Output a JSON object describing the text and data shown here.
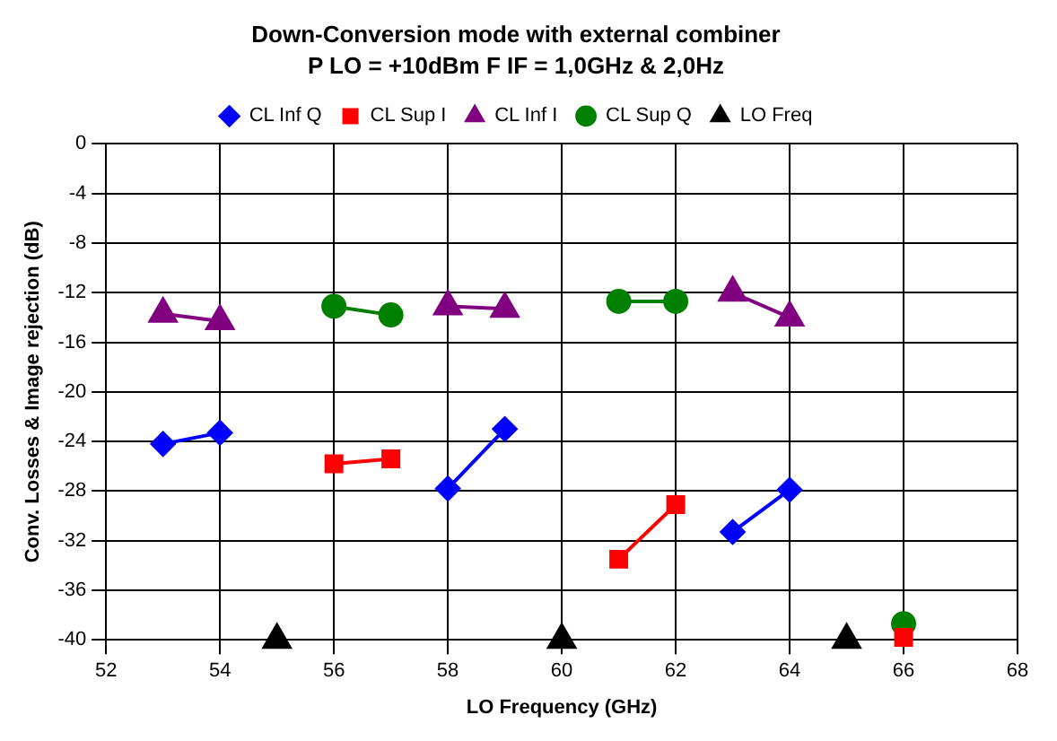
{
  "chart_data": {
    "type": "line",
    "title": "Down-Conversion mode with external combiner",
    "subtitle": "P LO = +10dBm F IF = 1,0GHz & 2,0Hz",
    "xlabel": "LO Frequency (GHz)",
    "ylabel": "Conv. Losses & Image rejection (dB)",
    "xlim": [
      52,
      68
    ],
    "xticks": [
      52,
      54,
      56,
      58,
      60,
      62,
      64,
      66,
      68
    ],
    "ylim": [
      -40,
      0
    ],
    "yticks": [
      0,
      -4,
      -8,
      -12,
      -16,
      -20,
      -24,
      -28,
      -32,
      -36,
      -40
    ],
    "grid": true,
    "legend": "top",
    "series": [
      {
        "name": "CL Inf Q",
        "marker": "diamond",
        "color": "#0000ff",
        "x": [
          53,
          54,
          56,
          58,
          59,
          61,
          63,
          64
        ],
        "values": [
          -24.2,
          -23.3,
          null,
          -27.8,
          -23,
          null,
          -31.3,
          -27.9
        ]
      },
      {
        "name": "CL Sup I",
        "marker": "square",
        "color": "#ff0000",
        "x": [
          56,
          57,
          59,
          61,
          62,
          64,
          66
        ],
        "values": [
          -25.8,
          -25.4,
          null,
          -33.5,
          -29.1,
          null,
          -39.8
        ]
      },
      {
        "name": "CL Inf I",
        "marker": "triangle",
        "color": "#800080",
        "x": [
          53,
          54,
          56,
          58,
          59,
          61,
          63,
          64
        ],
        "values": [
          -13.7,
          -14.3,
          null,
          -13.1,
          -13.3,
          null,
          -12.0,
          -14.0
        ]
      },
      {
        "name": "CL Sup Q",
        "marker": "circle",
        "color": "#008000",
        "x": [
          56,
          57,
          59,
          61,
          62,
          64,
          66
        ],
        "values": [
          -13.1,
          -13.8,
          null,
          -12.7,
          -12.7,
          null,
          -38.7
        ]
      },
      {
        "name": "LO Freq",
        "type": "scatter",
        "marker": "triangle",
        "color": "#000000",
        "x": [
          55,
          60,
          65
        ],
        "values": [
          -40,
          -40,
          -40
        ]
      }
    ]
  }
}
